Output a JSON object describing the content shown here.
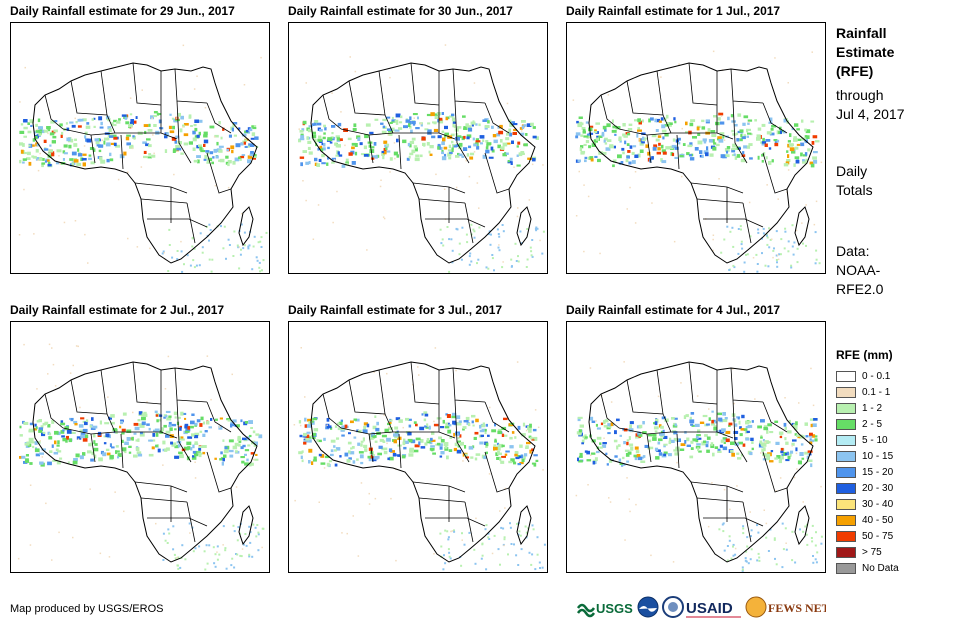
{
  "panels": [
    {
      "title": "Daily Rainfall estimate for 29 Jun., 2017"
    },
    {
      "title": "Daily Rainfall estimate for 30 Jun., 2017"
    },
    {
      "title": "Daily Rainfall estimate for 1 Jul., 2017"
    },
    {
      "title": "Daily Rainfall estimate for 2 Jul., 2017"
    },
    {
      "title": "Daily Rainfall estimate for 3 Jul., 2017"
    },
    {
      "title": "Daily Rainfall estimate for 4 Jul., 2017"
    }
  ],
  "side": {
    "title_lines": [
      "Rainfall",
      "Estimate",
      "(RFE)"
    ],
    "through_lines": [
      "through",
      "Jul 4, 2017"
    ],
    "totals_lines": [
      "Daily",
      "Totals"
    ],
    "data_lines": [
      "Data:",
      "NOAA-",
      "RFE2.0"
    ]
  },
  "legend": {
    "title": "RFE (mm)",
    "items": [
      {
        "label": "0 - 0.1",
        "color": "#ffffff"
      },
      {
        "label": "0.1 - 1",
        "color": "#f2dcbf"
      },
      {
        "label": "1 - 2",
        "color": "#b8f0b0"
      },
      {
        "label": "2 - 5",
        "color": "#66dd66"
      },
      {
        "label": "5 - 10",
        "color": "#b4ecf4"
      },
      {
        "label": "10 - 15",
        "color": "#8cc4f0"
      },
      {
        "label": "15 - 20",
        "color": "#4f94ec"
      },
      {
        "label": "20 - 30",
        "color": "#1f5fe0"
      },
      {
        "label": "30 - 40",
        "color": "#fbe47a"
      },
      {
        "label": "40 - 50",
        "color": "#f5a000"
      },
      {
        "label": "50 - 75",
        "color": "#f03c00"
      },
      {
        "label": "> 75",
        "color": "#a01818"
      },
      {
        "label": "No Data",
        "color": "#999999"
      }
    ]
  },
  "footer": {
    "credit": "Map produced by USGS/EROS"
  },
  "logos": {
    "usgs": "USGS",
    "usaid": "USAID",
    "fews": "FEWS NET"
  }
}
